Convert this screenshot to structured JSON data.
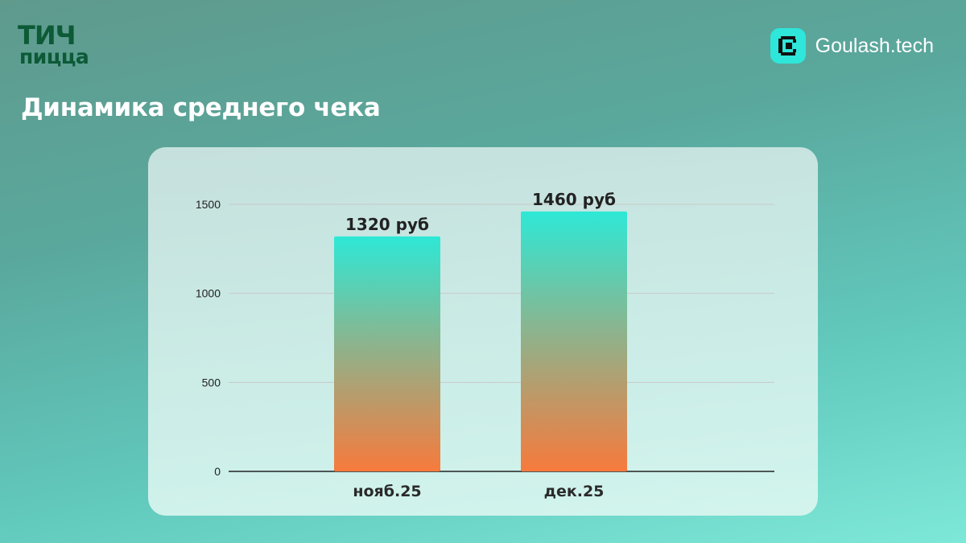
{
  "header": {
    "logo_line1": "ТИЧ",
    "logo_line2": "пицца",
    "brand_name": "Goulash.tech",
    "brand_icon": "goulash-logo-icon",
    "title": "Динамика среднего чека"
  },
  "colors": {
    "brand_dark_green": "#0c5a36",
    "brand_cyan": "#2ee6d9",
    "bar_top": "#2ee8d6",
    "bar_bottom": "#f77a3c"
  },
  "chart_data": {
    "type": "bar",
    "categories": [
      "нояб.25",
      "дек.25"
    ],
    "values": [
      1320,
      1460
    ],
    "value_labels": [
      "1320 руб",
      "1460 руб"
    ],
    "yticks": [
      0,
      500,
      1000,
      1500
    ],
    "ytick_labels": [
      "0",
      "500",
      "1000",
      "1500"
    ],
    "ylim": [
      0,
      1500
    ],
    "grid": true,
    "title": "",
    "xlabel": "",
    "ylabel": ""
  }
}
